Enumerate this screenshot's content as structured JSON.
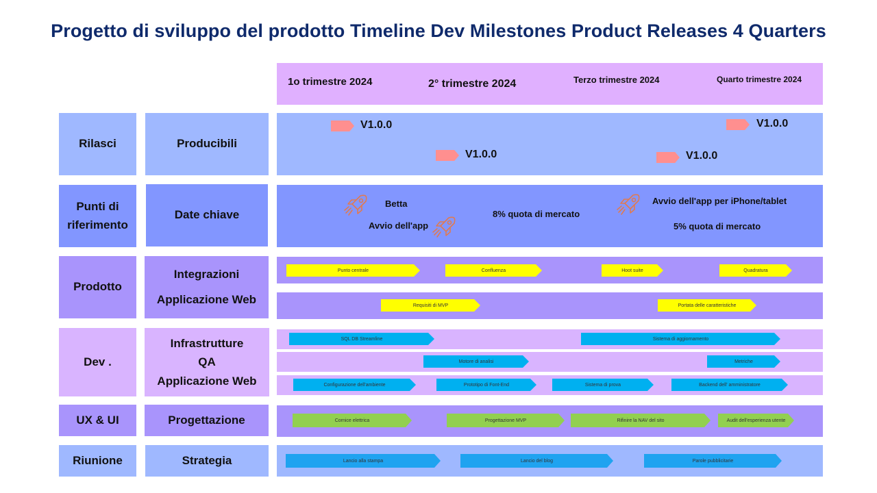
{
  "title": "Progetto di sviluppo del prodotto Timeline Dev Milestones Product Releases 4 Quarters",
  "colors": {
    "title": "#0f2a6b",
    "rilasci": "#9fb8ff",
    "punti": "#8296ff",
    "prodotto": "#a994fc",
    "dev": "#d9b4ff",
    "ux": "#a994fc",
    "riunione": "#9fb8ff",
    "quarter_header": "#e0b0ff",
    "release_marker": "#ff8f8f",
    "rocket": "#e07a52"
  },
  "quarters": [
    "1o trimestre 2024",
    "2° trimestre 2024",
    "Terzo trimestre 2024",
    "Quarto trimestre 2024"
  ],
  "rows": {
    "rilasci": {
      "category": "Rilasci",
      "label": "Producibili"
    },
    "punti": {
      "category": "Punti di riferimento",
      "label": "Date chiave"
    },
    "prodotto": {
      "category": "Prodotto",
      "label_1": "Integrazioni",
      "label_2": "Applicazione Web"
    },
    "dev": {
      "category": "Dev .",
      "label_1": "Infrastrutture",
      "label_2": "QA",
      "label_3": "Applicazione Web"
    },
    "ux": {
      "category": "UX & UI",
      "label": "Progettazione"
    },
    "riunione": {
      "category": "Riunione",
      "label": "Strategia"
    }
  },
  "releases": [
    "V1.0.0",
    "V1.0.0",
    "V1.0.0",
    "V1.0.0"
  ],
  "milestones": {
    "betta": "Betta",
    "avvio_app": "Avvio dell'app",
    "quota8": "8% quota di mercato",
    "avvio_iphone": "Avvio dell'app per iPhone/tablet",
    "quota5": "5% quota di mercato"
  },
  "bars": {
    "integrazioni": [
      "Punto centrale",
      "Confluenza",
      "Hoot suite",
      "Quadratura"
    ],
    "webapp": [
      "Requisiti di MVP",
      "Portata delle caratteristiche"
    ],
    "infra": [
      "SQL DB Streamline",
      "Sistema di aggiornamento"
    ],
    "qa": [
      "Motore di analisi",
      "Metriche"
    ],
    "devweb": [
      "Configurazione dell'ambiente",
      "Prototipo di Font-End",
      "Sistema di prova",
      "Backend dell' amministratore"
    ],
    "design": [
      "Cornice elettrica",
      "Progettazione MVP",
      "Rifinire la NAV del sito",
      "Audit dell'esperienza utente"
    ],
    "strategia": [
      "Lancio alla stampa",
      "Lancio del blog",
      "Parole pubblicitarie"
    ]
  }
}
